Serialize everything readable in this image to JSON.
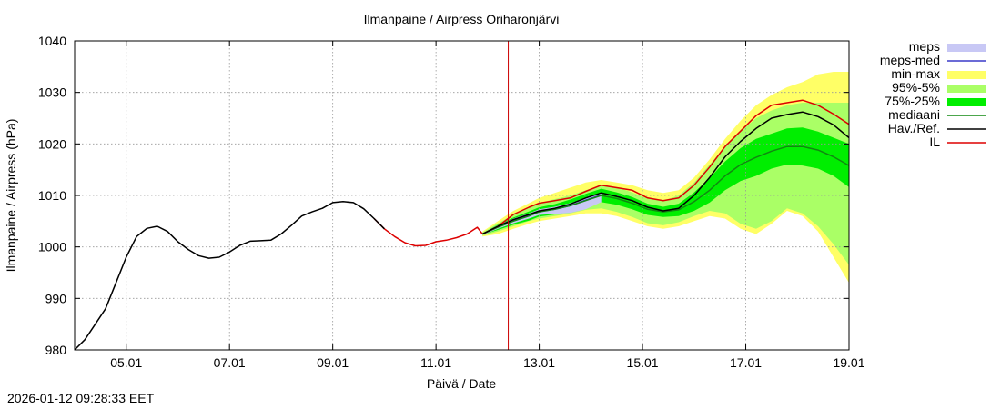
{
  "chart_data": {
    "type": "line",
    "title": "Ilmanpaine / Airpress Oriharonjärvi",
    "xlabel": "Päivä / Date",
    "ylabel": "Ilmanpaine / Airpress (hPa)",
    "xlim_days": [
      0,
      15
    ],
    "ylim": [
      980,
      1040
    ],
    "yticks": [
      980,
      990,
      1000,
      1010,
      1020,
      1030,
      1040
    ],
    "xticks": [
      {
        "day": 1,
        "label": "05.01"
      },
      {
        "day": 3,
        "label": "07.01"
      },
      {
        "day": 5,
        "label": "09.01"
      },
      {
        "day": 7,
        "label": "11.01"
      },
      {
        "day": 9,
        "label": "13.01"
      },
      {
        "day": 11,
        "label": "15.01"
      },
      {
        "day": 13,
        "label": "17.01"
      },
      {
        "day": 15,
        "label": "19.01"
      }
    ],
    "grid": true,
    "forecast_start_day": 8.4,
    "forecast_start_color": "#cc0000",
    "legend": [
      {
        "label": "meps",
        "color": "#c8c8f5",
        "kind": "box"
      },
      {
        "label": "meps-med",
        "color": "#3a3ac8",
        "kind": "line"
      },
      {
        "label": "min-max",
        "color": "#ffff66",
        "kind": "box"
      },
      {
        "label": "95%-5%",
        "color": "#aaff66",
        "kind": "box"
      },
      {
        "label": "75%-25%",
        "color": "#00ee00",
        "kind": "box"
      },
      {
        "label": "mediaani",
        "color": "#118811",
        "kind": "line"
      },
      {
        "label": "Hav./Ref.",
        "color": "#000000",
        "kind": "line"
      },
      {
        "label": "IL",
        "color": "#dd0000",
        "kind": "line"
      }
    ],
    "series": [
      {
        "name": "Hav./Ref.",
        "color": "#000000",
        "x": [
          0,
          0.2,
          0.4,
          0.6,
          0.8,
          1.0,
          1.2,
          1.4,
          1.6,
          1.8,
          2.0,
          2.2,
          2.4,
          2.6,
          2.8,
          3.0,
          3.2,
          3.4,
          3.6,
          3.8,
          4.0,
          4.2,
          4.4,
          4.6,
          4.8,
          5.0,
          5.2,
          5.4,
          5.6,
          5.8,
          6.0
        ],
        "y": [
          980,
          982,
          985,
          988,
          993,
          998,
          1002,
          1003.6,
          1004,
          1003,
          1001,
          999.5,
          998.3,
          997.8,
          998,
          999,
          1000.3,
          1001.1,
          1001.2,
          1001.3,
          1002.5,
          1004.2,
          1006,
          1006.8,
          1007.5,
          1008.6,
          1008.8,
          1008.6,
          1007.4,
          1005.5,
          1003.5
        ]
      },
      {
        "name": "IL-observed",
        "color": "#dd0000",
        "x": [
          5.8,
          6.0,
          6.2,
          6.4,
          6.6,
          6.8,
          7.0,
          7.2,
          7.4,
          7.6,
          7.8,
          7.9
        ],
        "y": [
          1005.5,
          1003.5,
          1002,
          1000.8,
          1000.2,
          1000.3,
          1001,
          1001.3,
          1001.8,
          1002.5,
          1003.8,
          1002.5
        ]
      },
      {
        "name": "IL",
        "color": "#dd0000",
        "x": [
          7.9,
          8.2,
          8.5,
          8.8,
          9.0,
          9.3,
          9.6,
          9.9,
          10.2,
          10.5,
          10.8,
          11.1,
          11.4,
          11.7,
          12.0,
          12.3,
          12.6,
          12.9,
          13.2,
          13.5,
          13.8,
          14.1,
          14.4,
          14.7,
          15.0
        ],
        "y": [
          1002.5,
          1004,
          1006.3,
          1007.7,
          1008.5,
          1009,
          1009.5,
          1010.8,
          1012,
          1011.5,
          1011,
          1009.5,
          1009,
          1009.5,
          1012,
          1015.5,
          1019.5,
          1022.5,
          1025.5,
          1027.5,
          1028,
          1028.5,
          1027.5,
          1025.8,
          1023.8
        ]
      },
      {
        "name": "Hav./Ref.-forecast",
        "color": "#000000",
        "x": [
          7.9,
          8.2,
          8.5,
          8.8,
          9.0,
          9.3,
          9.6,
          9.9,
          10.2,
          10.5,
          10.8,
          11.1,
          11.4,
          11.7,
          12.0,
          12.3,
          12.6,
          12.9,
          13.2,
          13.5,
          13.8,
          14.1,
          14.4,
          14.7,
          15.0
        ],
        "y": [
          1002.5,
          1004,
          1005.3,
          1006.3,
          1007,
          1007.5,
          1008.3,
          1009.5,
          1010.5,
          1009.8,
          1009,
          1007.7,
          1007,
          1007.5,
          1010,
          1013.5,
          1017.5,
          1020.5,
          1023,
          1025,
          1025.7,
          1026.2,
          1025.3,
          1023.7,
          1021.2
        ]
      },
      {
        "name": "mediaani",
        "color": "#118811",
        "x": [
          7.9,
          8.2,
          8.5,
          8.8,
          9.0,
          9.3,
          9.6,
          9.9,
          10.2,
          10.5,
          10.8,
          11.1,
          11.4,
          11.7,
          12.0,
          12.3,
          12.6,
          12.9,
          13.2,
          13.5,
          13.8,
          14.1,
          14.4,
          14.7,
          15.0
        ],
        "y": [
          1002.5,
          1003.8,
          1005,
          1006,
          1006.8,
          1007.3,
          1008,
          1009,
          1010,
          1009.4,
          1008.5,
          1007.3,
          1006.8,
          1007.2,
          1008.8,
          1011,
          1013.8,
          1016,
          1017.4,
          1018.6,
          1019.5,
          1019.5,
          1018.8,
          1017.5,
          1015.8
        ]
      },
      {
        "name": "meps-med",
        "color": "#3a3ac8",
        "x": [
          7.9,
          8.2,
          8.5,
          8.8,
          9.0,
          9.3,
          9.6,
          9.9,
          10.2
        ],
        "y": [
          1002.5,
          1003.9,
          1005.1,
          1006.1,
          1006.9,
          1007.3,
          1008,
          1009.1,
          1010.1
        ]
      }
    ],
    "bands": [
      {
        "name": "min-max",
        "color": "#ffff66",
        "x": [
          7.9,
          8.2,
          8.5,
          8.8,
          9.0,
          9.3,
          9.6,
          9.9,
          10.2,
          10.5,
          10.8,
          11.1,
          11.4,
          11.7,
          12.0,
          12.3,
          12.6,
          12.9,
          13.2,
          13.5,
          13.8,
          14.1,
          14.4,
          14.7,
          15.0
        ],
        "upper": [
          1003,
          1005,
          1007,
          1008.5,
          1009.5,
          1010.5,
          1011.5,
          1012.5,
          1013,
          1012.5,
          1012,
          1011,
          1010.5,
          1011,
          1013.5,
          1017,
          1021,
          1024.5,
          1027.5,
          1029.5,
          1031,
          1032,
          1033.5,
          1034,
          1034
        ],
        "lower": [
          1002,
          1002.5,
          1003.5,
          1004.5,
          1005,
          1005.5,
          1006,
          1006.5,
          1006.5,
          1006,
          1005,
          1004,
          1003.5,
          1004,
          1005,
          1006,
          1005.5,
          1003.5,
          1002.5,
          1004.5,
          1007,
          1006,
          1003,
          998,
          993
        ]
      },
      {
        "name": "95%-5%",
        "color": "#aaff66",
        "x": [
          7.9,
          8.2,
          8.5,
          8.8,
          9.0,
          9.3,
          9.6,
          9.9,
          10.2,
          10.5,
          10.8,
          11.1,
          11.4,
          11.7,
          12.0,
          12.3,
          12.6,
          12.9,
          13.2,
          13.5,
          13.8,
          14.1,
          14.4,
          14.7,
          15.0
        ],
        "upper": [
          1002.8,
          1004.6,
          1006.2,
          1007.6,
          1008.5,
          1009.3,
          1010,
          1011,
          1012,
          1011.6,
          1010.6,
          1009.4,
          1009,
          1010,
          1012.5,
          1016,
          1019.5,
          1022.5,
          1025,
          1026.5,
          1027.5,
          1028,
          1028,
          1028,
          1028
        ],
        "lower": [
          1002.2,
          1003,
          1004,
          1005,
          1005.5,
          1006,
          1006.5,
          1007.2,
          1007.5,
          1006.8,
          1005.8,
          1004.6,
          1004.2,
          1004.8,
          1006,
          1007,
          1006.5,
          1004.5,
          1003.5,
          1005,
          1007.5,
          1006.5,
          1004,
          1000.5,
          996.5
        ]
      },
      {
        "name": "75%-25%",
        "color": "#00ee00",
        "x": [
          7.9,
          8.2,
          8.5,
          8.8,
          9.0,
          9.3,
          9.6,
          9.9,
          10.2,
          10.5,
          10.8,
          11.1,
          11.4,
          11.7,
          12.0,
          12.3,
          12.6,
          12.9,
          13.2,
          13.5,
          13.8,
          14.1,
          14.4,
          14.7,
          15.0
        ],
        "upper": [
          1002.6,
          1004.3,
          1005.7,
          1006.9,
          1007.7,
          1008.3,
          1009.2,
          1010.3,
          1011.3,
          1010.6,
          1009.7,
          1008.4,
          1007.8,
          1008.4,
          1010.6,
          1013.4,
          1016.6,
          1019.2,
          1021,
          1022,
          1023,
          1023.2,
          1022.4,
          1021.2,
          1020
        ]
      },
      {
        "name": "meps",
        "color": "#c8c8f5",
        "x": [
          7.9,
          8.2,
          8.5,
          8.8,
          9.0,
          9.3,
          9.6,
          9.9,
          10.2
        ],
        "upper": [
          1002.6,
          1004.2,
          1005.5,
          1006.5,
          1007.3,
          1007.8,
          1008.5,
          1009.5,
          1010.5
        ],
        "lower": [
          1002.3,
          1003.5,
          1004.6,
          1005.5,
          1006.2,
          1006.4,
          1006.6,
          1007.3,
          1008.7
        ]
      }
    ]
  },
  "footer": {
    "timestamp": "2026-01-12 09:28:33 EET"
  }
}
